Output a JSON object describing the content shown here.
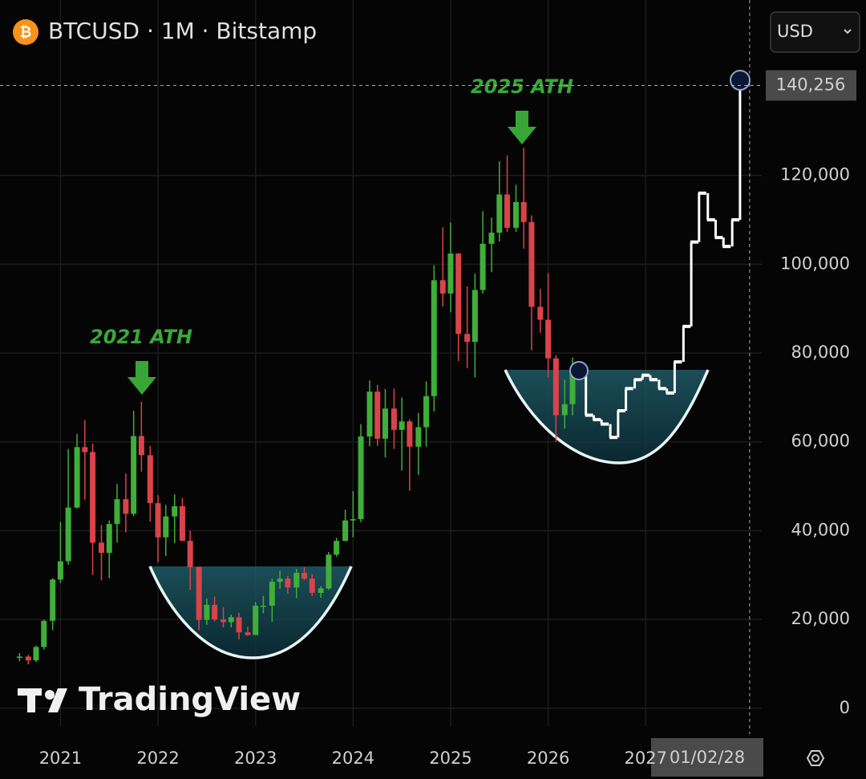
{
  "chart_data": {
    "type": "candlestick",
    "title": "BTCUSD · 1M · Bitstamp",
    "currency": "USD",
    "watermark": "TradingView",
    "annotations": [
      "2021 ATH",
      "2025 ATH"
    ],
    "last_price": {
      "value": 140256,
      "label": "140,256"
    },
    "crosshair_date": "01/02/28",
    "up_color": "#3fae3a",
    "down_color": "#d9434a",
    "grid": true,
    "xlim": [
      2020.38,
      2028.19
    ],
    "xticks": [
      2021,
      2022,
      2023,
      2024,
      2025,
      2026,
      2027
    ],
    "ylim": [
      -4000,
      159500
    ],
    "yticks": [
      0,
      {
        "value": 20000,
        "label": "20,000"
      },
      {
        "value": 40000,
        "label": "40,000"
      },
      {
        "value": 60000,
        "label": "60,000"
      },
      {
        "value": 80000,
        "label": "80,000"
      },
      {
        "value": 100000,
        "label": "100,000"
      },
      {
        "value": 120000,
        "label": "120,000"
      }
    ],
    "x": [
      2020.58,
      2020.67,
      2020.75,
      2020.83,
      2020.92,
      2021.0,
      2021.08,
      2021.17,
      2021.25,
      2021.33,
      2021.42,
      2021.5,
      2021.58,
      2021.67,
      2021.75,
      2021.83,
      2021.92,
      2022.0,
      2022.08,
      2022.17,
      2022.25,
      2022.33,
      2022.42,
      2022.5,
      2022.58,
      2022.67,
      2022.75,
      2022.83,
      2022.92,
      2023.0,
      2023.08,
      2023.17,
      2023.25,
      2023.33,
      2023.42,
      2023.5,
      2023.58,
      2023.67,
      2023.75,
      2023.83,
      2023.92,
      2024.0,
      2024.08,
      2024.17,
      2024.25,
      2024.33,
      2024.42,
      2024.5,
      2024.58,
      2024.67,
      2024.75,
      2024.83,
      2024.92,
      2025.0,
      2025.08,
      2025.17,
      2025.25,
      2025.33,
      2025.42,
      2025.5,
      2025.58,
      2025.67,
      2025.75,
      2025.83,
      2025.92,
      2026.0,
      2026.08,
      2026.17,
      2026.25
    ],
    "open": [
      11350,
      11650,
      10780,
      13800,
      19700,
      28990,
      33100,
      45200,
      58800,
      57700,
      37300,
      35000,
      41500,
      47100,
      43800,
      61300,
      57000,
      46200,
      38500,
      43200,
      45500,
      37700,
      31800,
      19900,
      23300,
      20000,
      19400,
      20500,
      17100,
      16500,
      23100,
      23100,
      28500,
      29200,
      27200,
      30500,
      29200,
      26000,
      27000,
      34600,
      37700,
      42300,
      42600,
      61200,
      71300,
      60700,
      67500,
      62700,
      64600,
      58900,
      63300,
      70300,
      96400,
      93400,
      102400,
      84300,
      82500,
      94200,
      104600,
      107100,
      115700,
      108200,
      114000,
      109500,
      90400,
      87500,
      78800,
      66000,
      68500
    ],
    "high": [
      12450,
      12050,
      14100,
      19900,
      29300,
      41950,
      58350,
      61800,
      64900,
      59600,
      41300,
      42300,
      50500,
      52900,
      67000,
      69000,
      59100,
      48000,
      45800,
      48200,
      47400,
      40000,
      31900,
      24700,
      25200,
      22800,
      21100,
      21500,
      18400,
      23900,
      25300,
      29200,
      31000,
      29800,
      31400,
      31800,
      30200,
      27500,
      35200,
      38400,
      44700,
      48900,
      64000,
      73800,
      72800,
      71900,
      72000,
      70000,
      65100,
      66500,
      73600,
      99800,
      108300,
      109400,
      102500,
      95000,
      97900,
      111900,
      110500,
      123200,
      124500,
      117900,
      126200,
      111000,
      94500,
      98000,
      79500,
      74000,
      79000
    ],
    "low": [
      10600,
      9900,
      10400,
      13200,
      17600,
      28200,
      32300,
      45000,
      47000,
      30000,
      28800,
      29300,
      37300,
      39600,
      43300,
      53300,
      42000,
      32900,
      34300,
      37200,
      37600,
      26700,
      17600,
      18800,
      19600,
      18200,
      18200,
      15500,
      16300,
      16500,
      21400,
      19500,
      26900,
      25800,
      24800,
      28900,
      25300,
      24900,
      26600,
      34100,
      37600,
      38500,
      41900,
      59000,
      59100,
      56500,
      58400,
      53500,
      49000,
      52600,
      58900,
      66800,
      90500,
      89200,
      78200,
      76600,
      74500,
      93400,
      98200,
      105100,
      107300,
      107300,
      103500,
      80600,
      84500,
      74500,
      60000,
      63000,
      66000
    ],
    "close": [
      11650,
      10780,
      13800,
      19700,
      28990,
      33100,
      45200,
      58800,
      57700,
      37300,
      35000,
      41500,
      47100,
      43800,
      61300,
      57000,
      46200,
      38500,
      43200,
      45500,
      37700,
      31800,
      19900,
      23300,
      20000,
      19400,
      20500,
      17100,
      16500,
      23100,
      23100,
      28500,
      29200,
      27200,
      30500,
      29200,
      26000,
      27000,
      34600,
      37700,
      42300,
      42600,
      61200,
      71300,
      60700,
      67500,
      62700,
      64600,
      58900,
      63300,
      70300,
      96400,
      93400,
      102400,
      84300,
      82500,
      94200,
      104600,
      107100,
      115700,
      108200,
      114000,
      109500,
      90400,
      87500,
      78800,
      66000,
      68500,
      75500
    ],
    "projection": {
      "color": "#ffffff",
      "x": [
        2026.33,
        2026.42,
        2026.5,
        2026.58,
        2026.67,
        2026.75,
        2026.83,
        2026.92,
        2027.0,
        2027.08,
        2027.17,
        2027.25,
        2027.33,
        2027.42,
        2027.5,
        2027.58,
        2027.67,
        2027.75,
        2027.83,
        2027.92,
        2028.0
      ],
      "values": [
        76000,
        66000,
        65000,
        64000,
        61000,
        67000,
        72000,
        74000,
        75000,
        74000,
        72000,
        71000,
        78000,
        86000,
        105000,
        116000,
        110000,
        106000,
        104000,
        110000,
        140256
      ]
    }
  }
}
